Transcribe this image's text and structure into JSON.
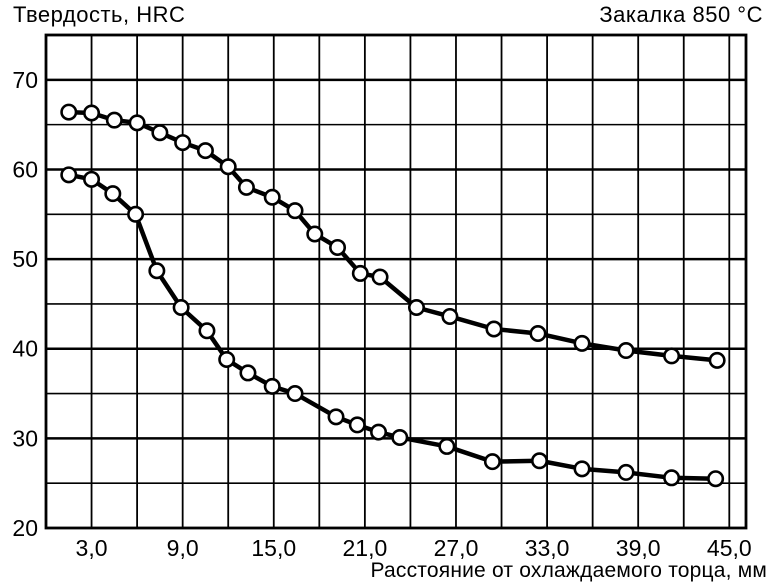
{
  "chart_data": {
    "type": "line",
    "title": "Закалка 850 °C",
    "ylabel": "Твердость, HRC",
    "xlabel": "Расстояние от охлаждаемого торца, мм",
    "xlim": [
      0,
      46.1
    ],
    "ylim": [
      20,
      75
    ],
    "grid": true,
    "legend": "none",
    "x_grid_step": 3,
    "x_grid_max": 45,
    "y_grid_step": 5,
    "marker": "open-circle",
    "colors": {
      "line": "#000000",
      "marker_fill": "#ffffff",
      "grid": "#000000",
      "background": "#ffffff"
    },
    "x_ticks": [
      {
        "value": 3,
        "label": "3,0"
      },
      {
        "value": 9,
        "label": "9,0"
      },
      {
        "value": 15,
        "label": "15,0"
      },
      {
        "value": 21,
        "label": "21,0"
      },
      {
        "value": 27,
        "label": "27,0"
      },
      {
        "value": 33,
        "label": "33,0"
      },
      {
        "value": 39,
        "label": "39,0"
      },
      {
        "value": 45,
        "label": "45,0"
      }
    ],
    "y_ticks": [
      {
        "value": 70,
        "label": "70"
      },
      {
        "value": 60,
        "label": "60"
      },
      {
        "value": 50,
        "label": "50"
      },
      {
        "value": 40,
        "label": "40"
      },
      {
        "value": 30,
        "label": "30"
      },
      {
        "value": 20,
        "label": "20"
      }
    ],
    "series": [
      {
        "name": "upper-curve",
        "points": [
          [
            1.5,
            66.4
          ],
          [
            3.0,
            66.3
          ],
          [
            4.5,
            65.5
          ],
          [
            6.0,
            65.2
          ],
          [
            7.5,
            64.1
          ],
          [
            9.0,
            63.0
          ],
          [
            10.5,
            62.1
          ],
          [
            12.0,
            60.3
          ],
          [
            13.2,
            58.0
          ],
          [
            14.9,
            56.9
          ],
          [
            16.4,
            55.4
          ],
          [
            17.7,
            52.8
          ],
          [
            19.2,
            51.3
          ],
          [
            20.7,
            48.4
          ],
          [
            22.0,
            48.0
          ],
          [
            24.4,
            44.6
          ],
          [
            26.6,
            43.6
          ],
          [
            29.5,
            42.2
          ],
          [
            32.4,
            41.7
          ],
          [
            35.3,
            40.6
          ],
          [
            38.2,
            39.8
          ],
          [
            41.2,
            39.2
          ],
          [
            44.2,
            38.7
          ]
        ]
      },
      {
        "name": "lower-curve",
        "points": [
          [
            1.5,
            59.4
          ],
          [
            3.0,
            58.9
          ],
          [
            4.4,
            57.3
          ],
          [
            5.9,
            55.0
          ],
          [
            7.3,
            48.7
          ],
          [
            8.9,
            44.6
          ],
          [
            10.6,
            42.0
          ],
          [
            11.9,
            38.8
          ],
          [
            13.3,
            37.3
          ],
          [
            14.9,
            35.8
          ],
          [
            16.4,
            35.0
          ],
          [
            19.1,
            32.4
          ],
          [
            20.5,
            31.5
          ],
          [
            21.9,
            30.7
          ],
          [
            23.3,
            30.1
          ],
          [
            26.4,
            29.1
          ],
          [
            29.4,
            27.4
          ],
          [
            32.5,
            27.5
          ],
          [
            35.3,
            26.6
          ],
          [
            38.2,
            26.2
          ],
          [
            41.2,
            25.6
          ],
          [
            44.1,
            25.5
          ]
        ]
      }
    ]
  }
}
